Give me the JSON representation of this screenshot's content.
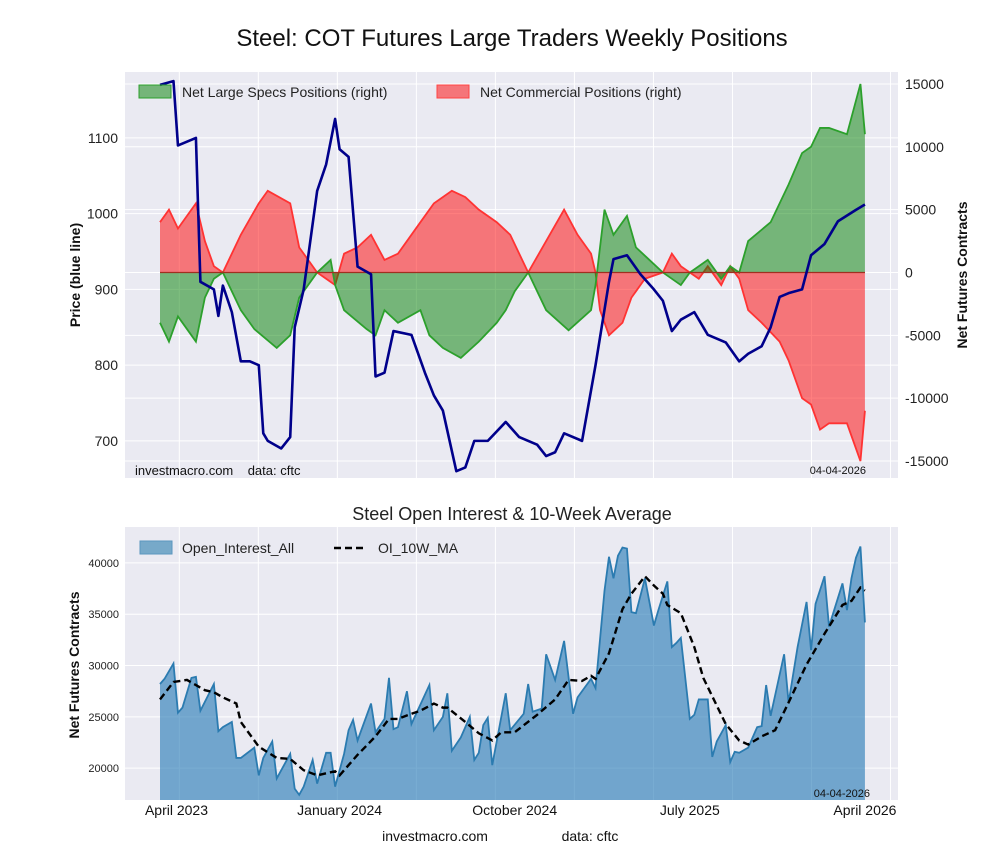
{
  "chart_data": [
    {
      "type": "area",
      "title": "Steel: COT Futures Large Traders Weekly Positions",
      "x_unit": "weeks since first report (April 2023)",
      "ylabel_left": "Price (blue line)",
      "ylabel_right": "Net Futures Contracts",
      "ylim_left": [
        651,
        1187
      ],
      "ylim_right": [
        -16350,
        15950
      ],
      "left_ticks": [
        "700",
        "800",
        "900",
        "1000",
        "1100"
      ],
      "left_tick_values": [
        700,
        800,
        900,
        1000,
        1100
      ],
      "right_ticks": [
        "-15000",
        "-10000",
        "-5000",
        "0",
        "5000",
        "10000",
        "15000"
      ],
      "right_tick_values": [
        -15000,
        -10000,
        -5000,
        0,
        5000,
        10000,
        15000
      ],
      "grid": true,
      "legend_placement": "top-left",
      "footer_left": "investmacro.com    data: cftc",
      "footer_right": "04-04-2026",
      "series": [
        {
          "name": "Price",
          "kind": "line",
          "color": "#00008b",
          "axis": "left",
          "x": [
            0,
            3,
            4,
            6,
            8,
            9,
            12,
            13,
            14,
            16,
            18,
            20,
            22,
            23,
            24,
            27,
            29,
            30,
            32,
            35,
            37,
            39,
            40,
            42,
            44,
            47,
            48,
            50,
            52,
            56,
            59,
            61,
            63,
            66,
            68,
            70,
            73,
            77,
            80,
            84,
            86,
            88,
            90,
            94,
            97,
            100,
            101,
            104,
            107,
            110,
            112,
            114,
            116,
            119,
            122,
            126,
            129,
            131,
            134,
            136,
            138,
            140,
            143,
            145,
            148,
            151,
            155,
            157
          ],
          "values": [
            1170,
            1175,
            1090,
            1095,
            1100,
            910,
            900,
            865,
            905,
            870,
            805,
            805,
            800,
            710,
            700,
            690,
            705,
            850,
            900,
            1030,
            1065,
            1125,
            1085,
            1075,
            930,
            920,
            785,
            790,
            845,
            840,
            790,
            760,
            740,
            660,
            665,
            700,
            700,
            725,
            705,
            695,
            680,
            685,
            710,
            700,
            800,
            910,
            940,
            945,
            920,
            900,
            885,
            845,
            860,
            870,
            840,
            830,
            805,
            815,
            825,
            850,
            890,
            895,
            900,
            945,
            960,
            990,
            1005,
            1012
          ]
        },
        {
          "name": "Net Large Specs Positions (right)",
          "kind": "area",
          "color": "#2ca02c",
          "axis": "right",
          "x": [
            0,
            2,
            4,
            7,
            8,
            10,
            12,
            14,
            18,
            21,
            26,
            29,
            31,
            35,
            38,
            39,
            41,
            46,
            48,
            50,
            53,
            58,
            60,
            63,
            67,
            71,
            75,
            77,
            79,
            82,
            86,
            91,
            96,
            97,
            99,
            101,
            104,
            106,
            109,
            112,
            116,
            118,
            120,
            122,
            125,
            127,
            129,
            131,
            136,
            140,
            143,
            145,
            147,
            149,
            153,
            156,
            157
          ],
          "values": [
            -4000,
            -5500,
            -3500,
            -5000,
            -5500,
            -2000,
            -500,
            0,
            -3000,
            -4500,
            -6000,
            -5000,
            -2000,
            0,
            1000,
            -1000,
            -3000,
            -4500,
            -5000,
            -3000,
            -4000,
            -3000,
            -5000,
            -6000,
            -6800,
            -5500,
            -4000,
            -3000,
            -1500,
            0,
            -3000,
            -4600,
            -3000,
            -1000,
            5000,
            3000,
            4500,
            2000,
            1000,
            0,
            -1000,
            0,
            500,
            1000,
            -500,
            500,
            0,
            2500,
            4000,
            7000,
            9500,
            10000,
            11500,
            11500,
            11000,
            15000,
            11000
          ]
        },
        {
          "name": "Net Commercial Positions (right)",
          "kind": "area",
          "color": "#ff0000",
          "axis": "right",
          "x": [
            0,
            2,
            4,
            8,
            10,
            12,
            14,
            18,
            22,
            24,
            29,
            31,
            35,
            37,
            39,
            41,
            44,
            47,
            50,
            53,
            58,
            61,
            65,
            68,
            71,
            75,
            78,
            82,
            86,
            90,
            93,
            96,
            97,
            98,
            100,
            103,
            105,
            108,
            112,
            114,
            116,
            118,
            120,
            122,
            125,
            127,
            129,
            131,
            134,
            138,
            140,
            143,
            145,
            147,
            149,
            153,
            156,
            157
          ],
          "values": [
            4000,
            5000,
            3500,
            5500,
            2500,
            500,
            0,
            3000,
            5500,
            6500,
            5500,
            2000,
            0,
            -500,
            -1000,
            1500,
            2000,
            3000,
            1000,
            1500,
            4000,
            5500,
            6500,
            6000,
            5000,
            4000,
            3000,
            0,
            2500,
            5000,
            3000,
            1500,
            0,
            -3000,
            -5000,
            -4000,
            -2000,
            -500,
            0,
            1500,
            500,
            0,
            -500,
            500,
            -1000,
            500,
            -500,
            -3000,
            -4000,
            -5500,
            -7000,
            -10000,
            -10500,
            -12500,
            -12000,
            -12000,
            -15000,
            -11000
          ]
        }
      ]
    },
    {
      "type": "area",
      "title": "Steel Open Interest & 10-Week Average",
      "x_unit": "weeks since first report (April 2023)",
      "ylabel": "Net Futures Contracts",
      "ylim": [
        16900,
        43500
      ],
      "y_ticks": [
        "20000",
        "25000",
        "30000",
        "35000",
        "40000"
      ],
      "y_tick_values": [
        20000,
        25000,
        30000,
        35000,
        40000
      ],
      "x_ticks": [
        "April 2023",
        "January 2024",
        "October 2024",
        "July 2025",
        "April 2026"
      ],
      "x_tick_values": [
        1,
        40,
        79,
        118,
        157
      ],
      "grid": true,
      "legend_placement": "top-left",
      "footer_right": "04-04-2026",
      "series": [
        {
          "name": "Open_Interest_All",
          "kind": "area",
          "color": "#1f77b4",
          "x": [
            0,
            1,
            3,
            4,
            5,
            7,
            8,
            9,
            12,
            13,
            14,
            16,
            17,
            18,
            21,
            22,
            23,
            25,
            26,
            29,
            30,
            31,
            32,
            34,
            35,
            37,
            38,
            39,
            41,
            42,
            43,
            44,
            47,
            48,
            50,
            51,
            52,
            53,
            55,
            56,
            60,
            61,
            63,
            64,
            65,
            67,
            69,
            70,
            71,
            72,
            73,
            74,
            77,
            78,
            81,
            82,
            83,
            85,
            86,
            88,
            90,
            92,
            93,
            96,
            97,
            99,
            100,
            101,
            102,
            103,
            104,
            105,
            106,
            108,
            110,
            111,
            113,
            114,
            115,
            116,
            118,
            119,
            120,
            122,
            123,
            124,
            126,
            127,
            128,
            129,
            131,
            133,
            134,
            135,
            136,
            139,
            140,
            142,
            144,
            145,
            146,
            148,
            149,
            152,
            153,
            154,
            155,
            156,
            157
          ],
          "values": [
            28200,
            28700,
            30200,
            25400,
            25900,
            28800,
            28900,
            25600,
            28200,
            23600,
            24000,
            24500,
            21000,
            21000,
            22000,
            19300,
            21000,
            22600,
            19000,
            21400,
            18000,
            17400,
            18200,
            20800,
            18500,
            21500,
            21500,
            18200,
            21400,
            23700,
            24700,
            22700,
            26300,
            23500,
            24800,
            28800,
            23800,
            24000,
            27500,
            24300,
            28100,
            23700,
            25000,
            27300,
            21700,
            23000,
            25000,
            20800,
            21500,
            24200,
            24900,
            20300,
            27300,
            23700,
            25300,
            28200,
            25500,
            25800,
            31100,
            28600,
            32400,
            25300,
            26900,
            28700,
            27800,
            37300,
            40600,
            38500,
            40700,
            41500,
            41400,
            35200,
            35100,
            38500,
            33900,
            35400,
            38200,
            31800,
            32200,
            32700,
            24800,
            25200,
            26700,
            26700,
            21100,
            22600,
            24200,
            20600,
            21600,
            21500,
            22000,
            24000,
            24100,
            28100,
            25100,
            31100,
            26400,
            31800,
            36200,
            31500,
            36000,
            38700,
            33800,
            38000,
            35400,
            38500,
            40500,
            41600,
            34200
          ]
        },
        {
          "name": "OI_10W_MA",
          "kind": "line",
          "color": "#000000",
          "style": "dashed",
          "x": [
            0,
            3,
            6,
            10,
            12,
            14,
            17,
            18,
            22,
            26,
            29,
            32,
            35,
            39,
            40,
            44,
            48,
            51,
            53,
            56,
            58,
            61,
            63,
            64,
            68,
            71,
            74,
            76,
            79,
            84,
            88,
            91,
            94,
            96,
            97,
            100,
            103,
            105,
            108,
            110,
            112,
            113,
            116,
            119,
            121,
            126,
            129,
            131,
            134,
            137,
            140,
            144,
            148,
            150,
            152,
            154,
            156,
            157
          ],
          "values": [
            26700,
            28400,
            28600,
            27600,
            27400,
            26900,
            26300,
            24500,
            22100,
            21000,
            20900,
            19800,
            19300,
            19700,
            19300,
            21300,
            23100,
            24800,
            24800,
            25300,
            25600,
            26300,
            25900,
            25900,
            24500,
            23400,
            22700,
            23500,
            23500,
            25200,
            26700,
            28600,
            28500,
            29000,
            28700,
            31200,
            35500,
            37000,
            38700,
            37800,
            37000,
            35900,
            35100,
            31800,
            28800,
            24300,
            22700,
            22300,
            23100,
            23700,
            26400,
            30100,
            33100,
            34500,
            35900,
            36300,
            37600,
            37300
          ]
        }
      ]
    }
  ],
  "footer": {
    "site": "investmacro.com",
    "source": "data: cftc"
  }
}
